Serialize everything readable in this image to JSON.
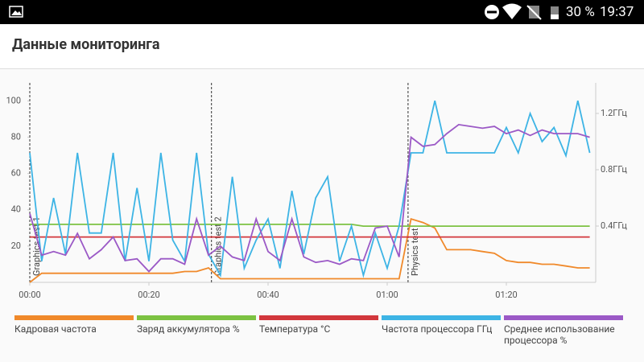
{
  "status_bar": {
    "battery": "30 %",
    "time": "19:37"
  },
  "header": {
    "title": "Данные мониторинга"
  },
  "chart_data": {
    "type": "line",
    "x": [
      0,
      2,
      4,
      6,
      8,
      10,
      12,
      14,
      16,
      18,
      20,
      22,
      24,
      26,
      28,
      30,
      32,
      34,
      36,
      38,
      40,
      42,
      44,
      46,
      48,
      50,
      52,
      54,
      56,
      58,
      60,
      62,
      64,
      66,
      68,
      70,
      72,
      74,
      76,
      78,
      80,
      82,
      84,
      86,
      88,
      90,
      92,
      94
    ],
    "xlim": [
      0,
      95
    ],
    "xticks": [
      {
        "value": 0,
        "label": "00:00"
      },
      {
        "value": 20,
        "label": "00:20"
      },
      {
        "value": 40,
        "label": "00:40"
      },
      {
        "value": 60,
        "label": "01:00"
      },
      {
        "value": 80,
        "label": "01:20"
      }
    ],
    "ylim": [
      0,
      110
    ],
    "yticks": [
      20,
      40,
      60,
      80,
      100
    ],
    "y2lim": [
      0,
      1.417
    ],
    "y2ticks": [
      {
        "value": 0.4,
        "label": "0.4ГГц"
      },
      {
        "value": 0.8,
        "label": "0.8ГГц"
      },
      {
        "value": 1.2,
        "label": "1.2ГГц"
      }
    ],
    "annotations": [
      {
        "x": 0,
        "label": "Graphics test 1"
      },
      {
        "x": 30.5,
        "label": "Graphics test 2"
      },
      {
        "x": 63.5,
        "label": "Physics test"
      }
    ],
    "series": [
      {
        "name": "Кадровая частота",
        "color": "#f0892a",
        "values": [
          0,
          5,
          5,
          5,
          5,
          5,
          5,
          5,
          5,
          5,
          5,
          5,
          5,
          6,
          6,
          8,
          2,
          2,
          2,
          2,
          2,
          2,
          2,
          2,
          2,
          2,
          2,
          2,
          2,
          2,
          2,
          2,
          35,
          33,
          30,
          18,
          18,
          18,
          17,
          16,
          12,
          11,
          11,
          10,
          10,
          9,
          8,
          8
        ]
      },
      {
        "name": "Заряд аккумулятора %",
        "color": "#7cc242",
        "values": [
          32,
          32,
          32,
          32,
          32,
          32,
          32,
          32,
          32,
          32,
          32,
          32,
          32,
          32,
          32,
          32,
          32,
          32,
          32,
          32,
          32,
          32,
          32,
          32,
          32,
          32,
          32,
          32,
          31,
          31,
          31,
          31,
          31,
          31,
          31,
          31,
          31,
          31,
          31,
          31,
          31,
          31,
          31,
          31,
          31,
          31,
          31,
          31
        ]
      },
      {
        "name": "Температура °C",
        "color": "#d2373c",
        "values": [
          25,
          25,
          25,
          25,
          25,
          25,
          25,
          25,
          25,
          25,
          25,
          25,
          25,
          25,
          25,
          25,
          25,
          25,
          25,
          25,
          25,
          25,
          25,
          25,
          25,
          25,
          25,
          25,
          25,
          25,
          25,
          25,
          25,
          25,
          25,
          25,
          25,
          25,
          25,
          25,
          25,
          25,
          25,
          25,
          25,
          25,
          25,
          25
        ]
      },
      {
        "name": "Частота процессора ГГц",
        "color": "#3db4e5",
        "axis": "y2",
        "values": [
          0.92,
          0.15,
          0.6,
          0.2,
          0.92,
          0.35,
          0.35,
          0.92,
          0.15,
          0.67,
          0.15,
          0.92,
          0.3,
          0.15,
          0.92,
          0.2,
          0.05,
          0.75,
          0.1,
          0.3,
          0.45,
          0.1,
          0.65,
          0.2,
          0.6,
          0.75,
          0.15,
          0.4,
          0.05,
          0.35,
          0.1,
          0.4,
          0.92,
          0.92,
          1.29,
          0.92,
          0.92,
          0.92,
          0.92,
          0.92,
          1.1,
          0.92,
          1.2,
          1.0,
          1.1,
          0.9,
          1.29,
          0.92
        ]
      },
      {
        "name": "Среднее использование процессора %",
        "color": "#9b59c6",
        "values": [
          38,
          15,
          17,
          15,
          27,
          13,
          18,
          25,
          12,
          13,
          6,
          13,
          13,
          10,
          35,
          15,
          20,
          14,
          12,
          35,
          17,
          12,
          35,
          14,
          11,
          12,
          10,
          13,
          12,
          30,
          31,
          14,
          80,
          75,
          76,
          82,
          87,
          86,
          85,
          86,
          82,
          84,
          81,
          84,
          82,
          82,
          82,
          80
        ]
      }
    ]
  }
}
